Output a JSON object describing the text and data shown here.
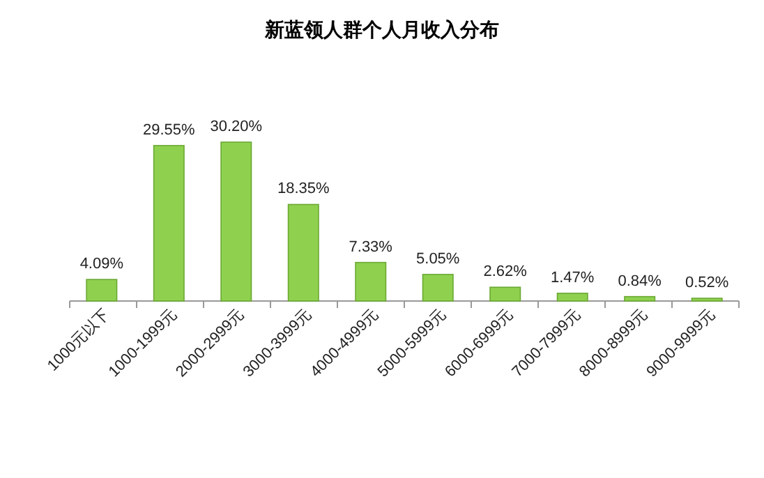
{
  "chart_data": {
    "type": "bar",
    "title": "新蓝领人群个人月收入分布",
    "categories": [
      "1000元以下",
      "1000-1999元",
      "2000-2999元",
      "3000-3999元",
      "4000-4999元",
      "5000-5999元",
      "6000-6999元",
      "7000-7999元",
      "8000-8999元",
      "9000-9999元"
    ],
    "values": [
      4.09,
      29.55,
      30.2,
      18.35,
      7.33,
      5.05,
      2.62,
      1.47,
      0.84,
      0.52
    ],
    "value_labels": [
      "4.09%",
      "29.55%",
      "30.20%",
      "18.35%",
      "7.33%",
      "5.05%",
      "2.62%",
      "1.47%",
      "0.84%",
      "0.52%"
    ],
    "color": "#8fd14f"
  }
}
